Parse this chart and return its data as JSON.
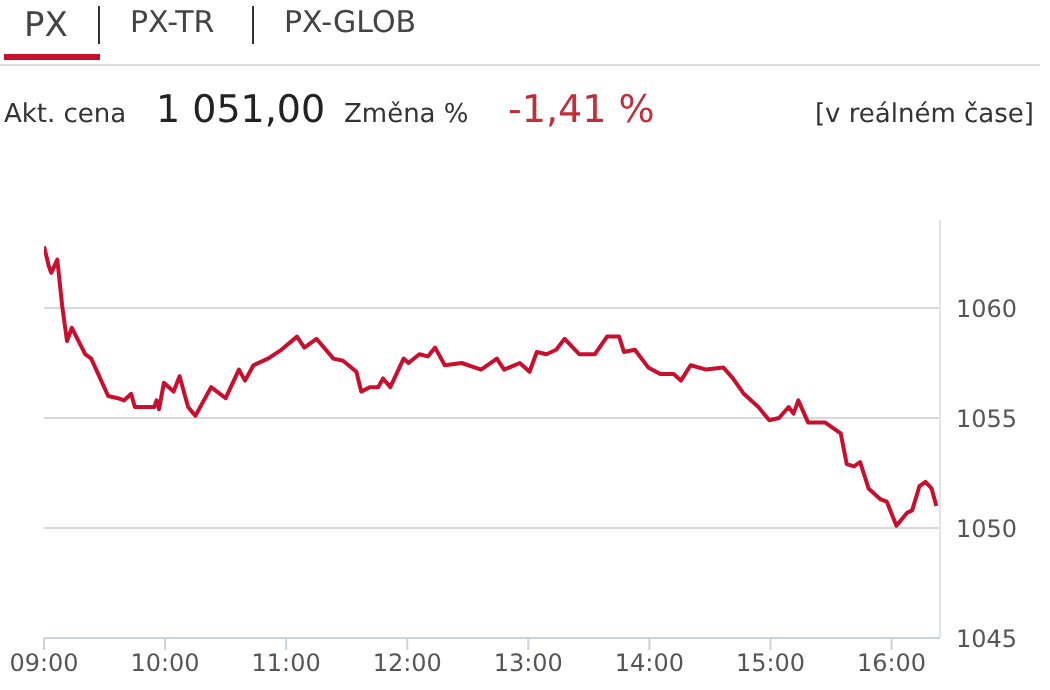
{
  "chart_data": {
    "type": "line",
    "title": "PX",
    "annotations": [
      "PX-TR",
      "PX-GLOB",
      "Akt. cena",
      "1 051,00",
      "Změna %",
      "-1,41 %",
      "[v reálném čase]"
    ],
    "x": [
      9.0,
      9.04,
      9.06,
      9.11,
      9.15,
      9.19,
      9.23,
      9.34,
      9.39,
      9.53,
      9.61,
      9.66,
      9.72,
      9.75,
      9.91,
      9.93,
      9.95,
      9.99,
      10.07,
      10.12,
      10.19,
      10.25,
      10.31,
      10.38,
      10.5,
      10.61,
      10.66,
      10.73,
      10.85,
      10.96,
      11.09,
      11.15,
      11.25,
      11.39,
      11.47,
      11.58,
      11.62,
      11.69,
      11.76,
      11.8,
      11.86,
      11.97,
      12.01,
      12.1,
      12.17,
      12.23,
      12.31,
      12.45,
      12.61,
      12.74,
      12.8,
      12.93,
      13.01,
      13.07,
      13.15,
      13.23,
      13.3,
      13.42,
      13.55,
      13.65,
      13.75,
      13.79,
      13.88,
      13.99,
      14.09,
      14.2,
      14.26,
      14.34,
      14.47,
      14.61,
      14.69,
      14.78,
      14.9,
      14.99,
      15.07,
      15.15,
      15.19,
      15.23,
      15.31,
      15.45,
      15.58,
      15.63,
      15.69,
      15.74,
      15.81,
      15.91,
      15.96,
      16.04,
      16.13,
      16.17,
      16.23,
      16.28,
      16.33,
      16.37
    ],
    "series": [
      {
        "color": "#c8102e",
        "values": [
          1062.8,
          1061.9,
          1061.6,
          1062.2,
          1060.1,
          1058.5,
          1059.1,
          1057.9,
          1057.7,
          1056.0,
          1055.9,
          1055.8,
          1056.1,
          1055.5,
          1055.5,
          1055.8,
          1055.4,
          1056.6,
          1056.2,
          1056.9,
          1055.5,
          1055.1,
          1055.7,
          1056.4,
          1055.9,
          1057.2,
          1056.7,
          1057.4,
          1057.7,
          1058.1,
          1058.7,
          1058.2,
          1058.6,
          1057.7,
          1057.6,
          1057.1,
          1056.2,
          1056.4,
          1056.4,
          1056.8,
          1056.4,
          1057.7,
          1057.5,
          1057.9,
          1057.8,
          1058.2,
          1057.4,
          1057.5,
          1057.2,
          1057.7,
          1057.2,
          1057.5,
          1057.1,
          1058.0,
          1057.9,
          1058.1,
          1058.6,
          1057.9,
          1057.9,
          1058.7,
          1058.7,
          1058.0,
          1058.1,
          1057.3,
          1057.0,
          1057.0,
          1056.7,
          1057.4,
          1057.2,
          1057.3,
          1056.8,
          1056.1,
          1055.5,
          1054.9,
          1055.0,
          1055.5,
          1055.2,
          1055.8,
          1054.8,
          1054.8,
          1054.3,
          1052.9,
          1052.8,
          1053.0,
          1051.8,
          1051.3,
          1051.2,
          1050.1,
          1050.7,
          1050.8,
          1051.9,
          1052.1,
          1051.8,
          1051.0
        ]
      }
    ],
    "xlim": [
      9,
      16.4
    ],
    "xticks": [
      {
        "value": 9,
        "label": "09:00"
      },
      {
        "value": 10,
        "label": "10:00"
      },
      {
        "value": 11,
        "label": "11:00"
      },
      {
        "value": 12,
        "label": "12:00"
      },
      {
        "value": 13,
        "label": "13:00"
      },
      {
        "value": 14,
        "label": "14:00"
      },
      {
        "value": 15,
        "label": "15:00"
      },
      {
        "value": 16,
        "label": "16:00"
      }
    ],
    "ylim": [
      1045,
      1064
    ],
    "yticks": [
      1045,
      1050,
      1055,
      1060
    ],
    "grid": "y",
    "marker": "none",
    "line_style": "solid",
    "legend": false
  }
}
